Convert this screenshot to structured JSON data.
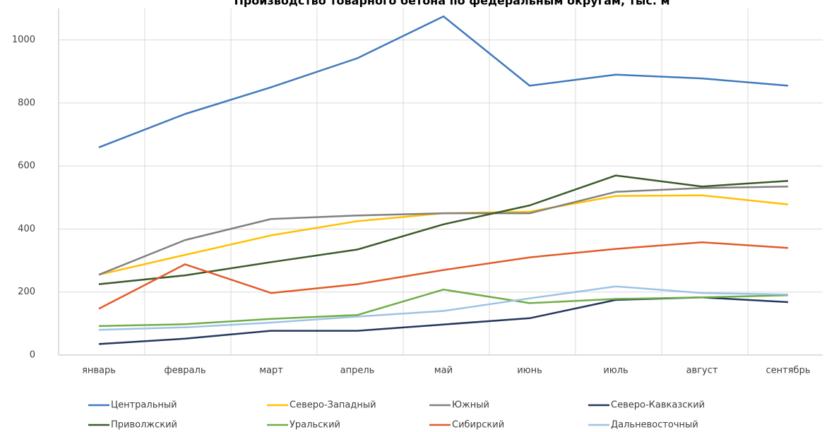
{
  "chart_data": {
    "type": "line",
    "title": "Производство товарного бетона по федеральным округам, тыс. м",
    "categories": [
      "январь",
      "февраль",
      "март",
      "апрель",
      "май",
      "июнь",
      "июль",
      "август",
      "сентябрь"
    ],
    "series": [
      {
        "name": "Центральный",
        "color": "#4079bd",
        "values": [
          659,
          765,
          850,
          942,
          1075,
          855,
          890,
          878,
          855
        ]
      },
      {
        "name": "Северо-Западный",
        "color": "#ffc000",
        "values": [
          255,
          318,
          380,
          425,
          450,
          455,
          505,
          507,
          478
        ]
      },
      {
        "name": "Южный",
        "color": "#808080",
        "values": [
          255,
          365,
          432,
          443,
          450,
          450,
          518,
          530,
          535
        ]
      },
      {
        "name": "Северо-Кавказский",
        "color": "#23375f",
        "values": [
          35,
          52,
          77,
          77,
          97,
          117,
          175,
          183,
          168
        ]
      },
      {
        "name": "Приволжский",
        "color": "#3a5a2a",
        "values": [
          225,
          253,
          295,
          335,
          415,
          475,
          570,
          535,
          553
        ]
      },
      {
        "name": "Уральский",
        "color": "#70ad47",
        "values": [
          92,
          98,
          115,
          127,
          208,
          165,
          178,
          183,
          190
        ]
      },
      {
        "name": "Сибирский",
        "color": "#e35a2a",
        "values": [
          147,
          288,
          197,
          225,
          270,
          310,
          337,
          358,
          340
        ]
      },
      {
        "name": "Дальневосточный",
        "color": "#9dc3e6",
        "values": [
          80,
          88,
          103,
          122,
          140,
          180,
          218,
          197,
          192
        ]
      }
    ],
    "ylim": [
      0,
      1100
    ],
    "yticks": [
      0,
      200,
      400,
      600,
      800,
      1000
    ],
    "grid": true,
    "legend": "bottom"
  }
}
